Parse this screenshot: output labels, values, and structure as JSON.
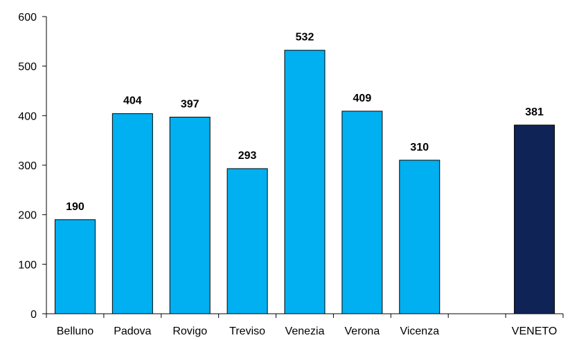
{
  "chart_data": {
    "type": "bar",
    "categories": [
      "Belluno",
      "Padova",
      "Rovigo",
      "Treviso",
      "Venezia",
      "Verona",
      "Vicenza",
      "",
      "VENETO"
    ],
    "values": [
      190,
      404,
      397,
      293,
      532,
      409,
      310,
      null,
      381
    ],
    "data_labels": [
      "190",
      "404",
      "397",
      "293",
      "532",
      "409",
      "310",
      "",
      "381"
    ],
    "bar_colors": [
      "#00B0F0",
      "#00B0F0",
      "#00B0F0",
      "#00B0F0",
      "#00B0F0",
      "#00B0F0",
      "#00B0F0",
      "",
      "#0F2357"
    ],
    "yticks": [
      "0",
      "100",
      "200",
      "300",
      "400",
      "500",
      "600"
    ],
    "ylim": [
      0,
      600
    ],
    "title": "",
    "xlabel": "",
    "ylabel": "",
    "grid": false,
    "legend": "none"
  }
}
